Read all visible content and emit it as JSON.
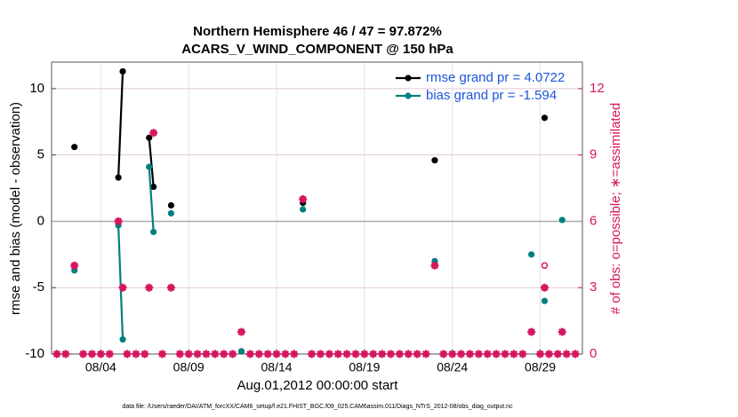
{
  "chart_data": {
    "type": "line",
    "title": "Northern Hemisphere 46 / 47 = 97.872%",
    "subtitle": "ACARS_V_WIND_COMPONENT @ 150 hPa",
    "xlabel": "Aug.01,2012 00:00:00 start",
    "ylabel": "rmse and bias (model - observation)",
    "y2label": "# of obs: o=possible; ∗=assimilated",
    "footnote": "data file: /Users/raeder/DAI/ATM_forcXX/CAM6_setup/f.e21.FHIST_BGC.f09_025.CAM6assim.011/Diags_NTrS_2012-08/obs_diag_output.nc",
    "xlim": [
      1.2,
      31.4
    ],
    "xticks": [
      {
        "value": 4,
        "label": "08/04"
      },
      {
        "value": 9,
        "label": "08/09"
      },
      {
        "value": 14,
        "label": "08/14"
      },
      {
        "value": 19,
        "label": "08/19"
      },
      {
        "value": 24,
        "label": "08/24"
      },
      {
        "value": 29,
        "label": "08/29"
      }
    ],
    "ylim": [
      -10,
      12
    ],
    "yticks": [
      -10,
      -5,
      0,
      5,
      10
    ],
    "y2lim": [
      0,
      13.2
    ],
    "y2ticks": [
      0,
      3,
      6,
      9,
      12
    ],
    "y2color": "#d6155f",
    "grid": true,
    "zero_line": true,
    "legend": "upper right",
    "series": [
      {
        "name": "rmse grand pr = 4.0722",
        "color": "#000000",
        "marker": "dot",
        "line": true,
        "x": [
          2.5,
          4.75,
          5,
          5.25,
          6.5,
          6.75,
          7,
          7.5,
          8,
          11,
          12,
          15,
          15.5,
          22,
          23,
          29,
          29.25
        ],
        "values": [
          5.6,
          null,
          3.3,
          11.3,
          null,
          6.3,
          2.6,
          null,
          1.2,
          null,
          -9.8,
          null,
          1.4,
          null,
          4.6,
          null,
          7.8
        ]
      },
      {
        "name": "bias grand pr = -1.594",
        "color": "#008080",
        "marker": "dot",
        "line": true,
        "x": [
          2.5,
          4.75,
          5,
          5.25,
          6.5,
          6.75,
          7,
          7.5,
          8,
          11,
          12,
          15,
          15.5,
          22,
          23,
          28,
          28.5,
          29,
          29.25,
          30,
          30.25
        ],
        "values": [
          -3.7,
          null,
          -0.3,
          -8.9,
          null,
          4.1,
          -0.8,
          null,
          0.6,
          null,
          -9.8,
          null,
          0.9,
          null,
          -3.0,
          null,
          -2.5,
          null,
          -6.0,
          null,
          0.1
        ]
      },
      {
        "color": "#d6155f",
        "marker": "circle",
        "axis": "y2",
        "x": [
          29.25
        ],
        "values": [
          4
        ]
      },
      {
        "color": "#d6155f",
        "marker": "star",
        "axis": "y2",
        "x": [
          1.5,
          2,
          2.5,
          3,
          3.5,
          4,
          4.5,
          5,
          5.25,
          5.5,
          6,
          6.5,
          6.75,
          7,
          7.5,
          8,
          8.5,
          9,
          9.5,
          10,
          10.5,
          11,
          11.5,
          12,
          12.5,
          13,
          13.5,
          14,
          14.5,
          15,
          15.5,
          16,
          16.5,
          17,
          17.5,
          18,
          18.5,
          19,
          19.5,
          20,
          20.5,
          21,
          21.5,
          22,
          22.5,
          23,
          23.5,
          24,
          24.5,
          25,
          25.5,
          26,
          26.5,
          27,
          27.5,
          28,
          28.5,
          29,
          29.25,
          29.5,
          30,
          30.25,
          30.5,
          31
        ],
        "values": [
          0,
          0,
          4,
          0,
          0,
          0,
          0,
          6,
          3,
          0,
          0,
          0,
          3,
          10,
          0,
          3,
          0,
          0,
          0,
          0,
          0,
          0,
          0,
          1,
          0,
          0,
          0,
          0,
          0,
          0,
          7,
          0,
          0,
          0,
          0,
          0,
          0,
          0,
          0,
          0,
          0,
          0,
          0,
          0,
          0,
          4,
          0,
          0,
          0,
          0,
          0,
          0,
          0,
          0,
          0,
          0,
          1,
          0,
          3,
          0,
          0,
          1,
          0,
          0
        ]
      }
    ]
  }
}
